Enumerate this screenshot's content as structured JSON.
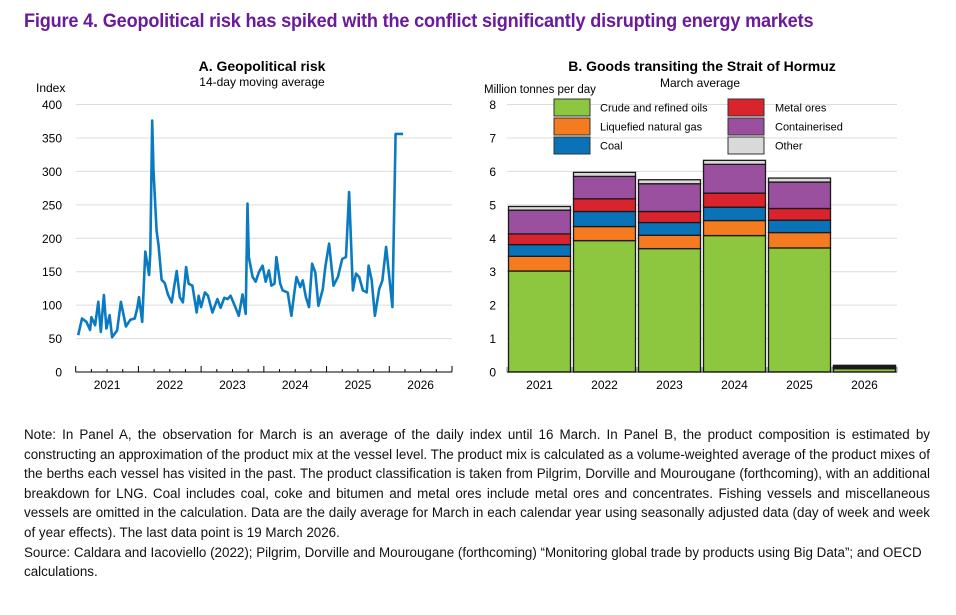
{
  "figure_title": "Figure  4. Geopolitical risk has spiked with the conflict significantly disrupting energy markets",
  "chart_data": [
    {
      "type": "line",
      "panel": "A",
      "title": "A. Geopolitical risk",
      "subtitle": "14-day moving average",
      "ylabel": "Index",
      "xlabel": "",
      "ylim": [
        0,
        400
      ],
      "yticks": [
        0,
        50,
        100,
        150,
        200,
        250,
        300,
        350,
        400
      ],
      "xlim": [
        2021,
        2027
      ],
      "xtick_labels": [
        "2021",
        "2022",
        "2023",
        "2024",
        "2025",
        "2026"
      ],
      "grid": true,
      "color": "#0b7bc1",
      "series": [
        {
          "name": "Geopolitical risk index",
          "x": [
            2021.04,
            2021.1,
            2021.17,
            2021.23,
            2021.25,
            2021.31,
            2021.36,
            2021.4,
            2021.45,
            2021.49,
            2021.54,
            2021.58,
            2021.66,
            2021.72,
            2021.8,
            2021.87,
            2021.94,
            2021.98,
            2022.01,
            2022.06,
            2022.11,
            2022.17,
            2022.19,
            2022.22,
            2022.24,
            2022.29,
            2022.32,
            2022.37,
            2022.42,
            2022.47,
            2022.53,
            2022.57,
            2022.61,
            2022.66,
            2022.71,
            2022.76,
            2022.8,
            2022.86,
            2022.93,
            2022.96,
            2023.0,
            2023.06,
            2023.11,
            2023.18,
            2023.26,
            2023.31,
            2023.37,
            2023.42,
            2023.47,
            2023.55,
            2023.6,
            2023.66,
            2023.71,
            2023.74,
            2023.76,
            2023.82,
            2023.87,
            2023.92,
            2023.98,
            2024.03,
            2024.08,
            2024.12,
            2024.17,
            2024.2,
            2024.26,
            2024.3,
            2024.38,
            2024.44,
            2024.49,
            2024.52,
            2024.58,
            2024.62,
            2024.67,
            2024.72,
            2024.77,
            2024.82,
            2024.87,
            2024.94,
            2024.98,
            2025.04,
            2025.11,
            2025.18,
            2025.25,
            2025.31,
            2025.36,
            2025.42,
            2025.47,
            2025.52,
            2025.58,
            2025.64,
            2025.67,
            2025.72,
            2025.77,
            2025.84,
            2025.89,
            2025.95,
            2026.0,
            2026.05,
            2026.1,
            2026.15,
            2026.19,
            2026.22
          ],
          "y": [
            55,
            80,
            75,
            63,
            82,
            70,
            105,
            60,
            115,
            65,
            85,
            52,
            62,
            105,
            68,
            78,
            80,
            95,
            112,
            75,
            180,
            145,
            178,
            376,
            301,
            211,
            190,
            138,
            133,
            116,
            104,
            128,
            151,
            112,
            104,
            157,
            132,
            129,
            89,
            114,
            97,
            119,
            114,
            89,
            109,
            96,
            111,
            109,
            114,
            96,
            84,
            116,
            87,
            252,
            172,
            142,
            135,
            149,
            159,
            135,
            152,
            129,
            132,
            172,
            132,
            122,
            119,
            84,
            122,
            142,
            127,
            137,
            112,
            97,
            162,
            149,
            99,
            124,
            157,
            192,
            129,
            142,
            169,
            172,
            269,
            122,
            147,
            142,
            122,
            119,
            159,
            137,
            84,
            124,
            137,
            187,
            142,
            97,
            356,
            356,
            356,
            356
          ]
        }
      ]
    },
    {
      "type": "bar",
      "stacked": true,
      "panel": "B",
      "title": "B. Goods transiting the Strait of Hormuz",
      "subtitle": "March average",
      "ylabel": "Million tonnes per day",
      "xlabel": "",
      "ylim": [
        0,
        8
      ],
      "yticks": [
        0,
        1,
        2,
        3,
        4,
        5,
        6,
        7,
        8
      ],
      "grid": true,
      "legend_position": "top",
      "categories": [
        "2021",
        "2022",
        "2023",
        "2024",
        "2025",
        "2026"
      ],
      "series": [
        {
          "name": "Crude and refined oils",
          "color": "#8dc63f",
          "values": [
            3.02,
            3.93,
            3.69,
            4.08,
            3.71,
            0.1
          ]
        },
        {
          "name": "Liquefied natural gas",
          "color": "#f47b20",
          "values": [
            0.44,
            0.42,
            0.4,
            0.45,
            0.46,
            0.02
          ]
        },
        {
          "name": "Coal",
          "color": "#0a73b8",
          "values": [
            0.35,
            0.45,
            0.38,
            0.4,
            0.37,
            0.02
          ]
        },
        {
          "name": "Metal ores",
          "color": "#d9232d",
          "values": [
            0.32,
            0.38,
            0.33,
            0.42,
            0.35,
            0.02
          ]
        },
        {
          "name": "Containerised",
          "color": "#9b4f9f",
          "values": [
            0.71,
            0.67,
            0.83,
            0.86,
            0.79,
            0.02
          ]
        },
        {
          "name": "Other",
          "color": "#d9d9d9",
          "values": [
            0.11,
            0.12,
            0.12,
            0.12,
            0.12,
            0.02
          ]
        }
      ]
    }
  ],
  "note": "Note: In Panel A, the observation for March is an average of the daily index until 16 March. In Panel B, the product composition is estimated by constructing an approximation of the product mix at the vessel level. The product mix is calculated as a volume-weighted average of the product mixes of the berths each vessel has visited in the past. The product classification is taken from Pilgrim, Dorville and Mourougane (forthcoming), with an additional breakdown for LNG. Coal includes coal, coke and bitumen and metal ores include metal ores and concentrates. Fishing vessels and miscellaneous vessels are omitted in the calculation. Data are the daily average for March in each calendar year using seasonally adjusted data (day of week and week of year effects). The last data point is 19 March 2026.",
  "source": "Source: Caldara and Iacoviello (2022); Pilgrim, Dorville and Mourougane (forthcoming) “Monitoring global trade by products using Big Data”; and OECD calculations."
}
